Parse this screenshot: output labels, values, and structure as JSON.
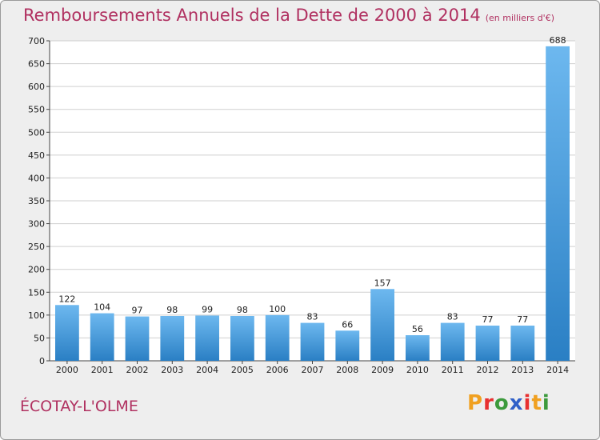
{
  "header": {
    "title": "Remboursements Annuels de la Dette de 2000 à 2014",
    "unit": "(en milliers d'€)"
  },
  "footer": {
    "commune": "ÉCOTAY-L'OLME"
  },
  "logo": {
    "letters": [
      "P",
      "r",
      "o",
      "x",
      "i",
      "t",
      "i"
    ],
    "colors": [
      "#f0a020",
      "#e83030",
      "#3c9a3c",
      "#3060c8",
      "#e83030",
      "#f0a020",
      "#3c9a3c"
    ]
  },
  "colors": {
    "bar_top": "#6db8ef",
    "bar_bottom": "#2a7fc4",
    "grid": "#cfcfcf",
    "title": "#b03060"
  },
  "chart_data": {
    "type": "bar",
    "title": "Remboursements Annuels de la Dette de 2000 à 2014",
    "categories": [
      "2000",
      "2001",
      "2002",
      "2003",
      "2004",
      "2005",
      "2006",
      "2007",
      "2008",
      "2009",
      "2010",
      "2011",
      "2012",
      "2013",
      "2014"
    ],
    "values": [
      122,
      104,
      97,
      98,
      99,
      98,
      100,
      83,
      66,
      157,
      56,
      83,
      77,
      77,
      688
    ],
    "ylim": [
      0,
      700
    ],
    "yticks": [
      0,
      50,
      100,
      150,
      200,
      250,
      300,
      350,
      400,
      450,
      500,
      550,
      600,
      650,
      700
    ],
    "grid": true,
    "data_labels": true
  }
}
